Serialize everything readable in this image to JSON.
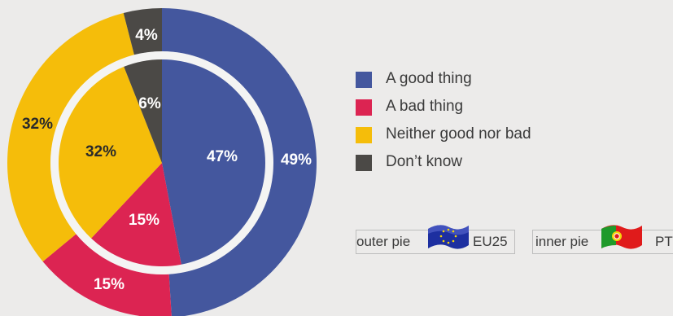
{
  "colors": {
    "good": "#44579e",
    "bad": "#dc2452",
    "neither": "#f5bd0a",
    "dontknow": "#4b4946",
    "background": "#ecebea"
  },
  "chart_data": {
    "type": "pie",
    "categories": [
      "A good thing",
      "A bad thing",
      "Neither good nor bad",
      "Don’t know"
    ],
    "series": [
      {
        "name": "EU25",
        "ring": "outer",
        "values": [
          49,
          15,
          32,
          4
        ],
        "labels": [
          "49%",
          "15%",
          "32%",
          "4%"
        ]
      },
      {
        "name": "PT",
        "ring": "inner",
        "values": [
          47,
          15,
          32,
          6
        ],
        "labels": [
          "47%",
          "15%",
          "32%",
          "6%"
        ]
      }
    ],
    "legend_position": "right"
  },
  "legend": [
    {
      "label": "A good thing",
      "color_key": "good"
    },
    {
      "label": "A bad thing",
      "color_key": "bad"
    },
    {
      "label": "Neither good nor bad",
      "color_key": "neither"
    },
    {
      "label": "Don’t know",
      "color_key": "dontknow"
    }
  ],
  "pie_keys": {
    "outer": {
      "prefix": "outer pie",
      "code": "EU25",
      "flag_icon": "eu-flag-icon"
    },
    "inner": {
      "prefix": "inner pie",
      "code": "PT",
      "flag_icon": "portugal-flag-icon"
    }
  }
}
